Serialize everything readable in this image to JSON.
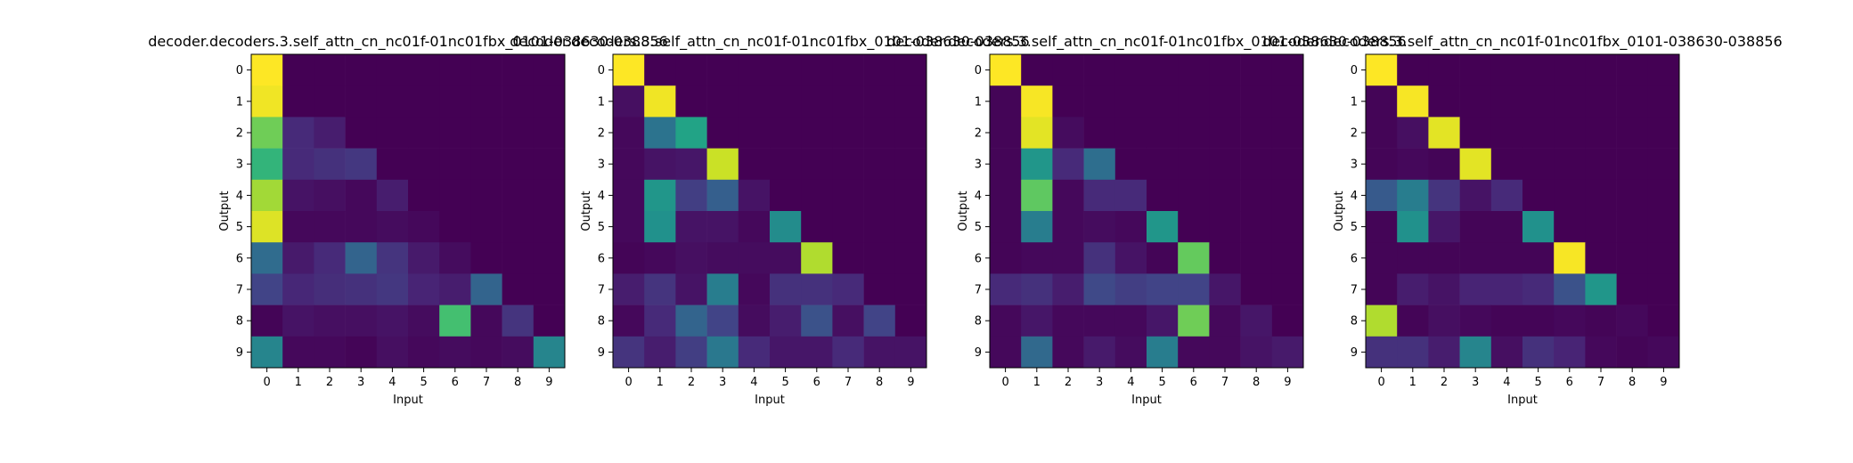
{
  "chart_data": [
    {
      "type": "heatmap",
      "title": "decoder.decoders.3.self_attn_cn_nc01f-01nc01fbx_0101-038630-038856",
      "xlabel": "Input",
      "ylabel": "Output",
      "x": [
        "0",
        "1",
        "2",
        "3",
        "4",
        "5",
        "6",
        "7",
        "8",
        "9"
      ],
      "y": [
        "0",
        "1",
        "2",
        "3",
        "4",
        "5",
        "6",
        "7",
        "8",
        "9"
      ],
      "colorscale": "viridis",
      "zlim": [
        0,
        1
      ],
      "values": [
        [
          1.0,
          0.0,
          0.0,
          0.0,
          0.0,
          0.0,
          0.0,
          0.0,
          0.0,
          0.0
        ],
        [
          0.98,
          0.0,
          0.0,
          0.0,
          0.0,
          0.0,
          0.0,
          0.0,
          0.0,
          0.0
        ],
        [
          0.78,
          0.12,
          0.08,
          0.0,
          0.0,
          0.0,
          0.0,
          0.0,
          0.0,
          0.0
        ],
        [
          0.65,
          0.12,
          0.14,
          0.16,
          0.0,
          0.0,
          0.0,
          0.0,
          0.0,
          0.0
        ],
        [
          0.86,
          0.05,
          0.04,
          0.02,
          0.08,
          0.0,
          0.0,
          0.0,
          0.0,
          0.0
        ],
        [
          0.95,
          0.02,
          0.02,
          0.02,
          0.03,
          0.02,
          0.0,
          0.0,
          0.0,
          0.0
        ],
        [
          0.35,
          0.07,
          0.12,
          0.32,
          0.15,
          0.07,
          0.03,
          0.0,
          0.0,
          0.0
        ],
        [
          0.2,
          0.11,
          0.13,
          0.14,
          0.16,
          0.1,
          0.08,
          0.32,
          0.0,
          0.0
        ],
        [
          0.01,
          0.05,
          0.04,
          0.04,
          0.05,
          0.03,
          0.7,
          0.02,
          0.15,
          0.0
        ],
        [
          0.45,
          0.02,
          0.02,
          0.01,
          0.04,
          0.02,
          0.03,
          0.02,
          0.03,
          0.45
        ]
      ]
    },
    {
      "type": "heatmap",
      "title": "decoder.decoders.3.self_attn_cn_nc01f-01nc01fbx_0101-038630-038856",
      "xlabel": "Input",
      "ylabel": "Output",
      "x": [
        "0",
        "1",
        "2",
        "3",
        "4",
        "5",
        "6",
        "7",
        "8",
        "9"
      ],
      "y": [
        "0",
        "1",
        "2",
        "3",
        "4",
        "5",
        "6",
        "7",
        "8",
        "9"
      ],
      "colorscale": "viridis",
      "zlim": [
        0,
        1
      ],
      "values": [
        [
          1.0,
          0.0,
          0.0,
          0.0,
          0.0,
          0.0,
          0.0,
          0.0,
          0.0,
          0.0
        ],
        [
          0.04,
          0.98,
          0.0,
          0.0,
          0.0,
          0.0,
          0.0,
          0.0,
          0.0,
          0.0
        ],
        [
          0.02,
          0.38,
          0.58,
          0.0,
          0.0,
          0.0,
          0.0,
          0.0,
          0.0,
          0.0
        ],
        [
          0.02,
          0.05,
          0.06,
          0.92,
          0.0,
          0.0,
          0.0,
          0.0,
          0.0,
          0.0
        ],
        [
          0.02,
          0.52,
          0.18,
          0.3,
          0.05,
          0.0,
          0.0,
          0.0,
          0.0,
          0.0
        ],
        [
          0.02,
          0.5,
          0.05,
          0.05,
          0.02,
          0.48,
          0.0,
          0.0,
          0.0,
          0.0
        ],
        [
          0.01,
          0.02,
          0.04,
          0.03,
          0.03,
          0.03,
          0.88,
          0.0,
          0.0,
          0.0
        ],
        [
          0.08,
          0.15,
          0.05,
          0.42,
          0.02,
          0.14,
          0.14,
          0.12,
          0.0,
          0.0
        ],
        [
          0.02,
          0.12,
          0.32,
          0.2,
          0.03,
          0.08,
          0.25,
          0.04,
          0.2,
          0.0
        ],
        [
          0.15,
          0.08,
          0.18,
          0.4,
          0.12,
          0.06,
          0.06,
          0.12,
          0.05,
          0.05
        ]
      ]
    },
    {
      "type": "heatmap",
      "title": "decoder.decoders.3.self_attn_cn_nc01f-01nc01fbx_0101-038630-038856",
      "xlabel": "Input",
      "ylabel": "Output",
      "x": [
        "0",
        "1",
        "2",
        "3",
        "4",
        "5",
        "6",
        "7",
        "8",
        "9"
      ],
      "y": [
        "0",
        "1",
        "2",
        "3",
        "4",
        "5",
        "6",
        "7",
        "8",
        "9"
      ],
      "colorscale": "viridis",
      "zlim": [
        0,
        1
      ],
      "values": [
        [
          1.0,
          0.0,
          0.0,
          0.0,
          0.0,
          0.0,
          0.0,
          0.0,
          0.0,
          0.0
        ],
        [
          0.01,
          0.99,
          0.0,
          0.0,
          0.0,
          0.0,
          0.0,
          0.0,
          0.0,
          0.0
        ],
        [
          0.01,
          0.96,
          0.03,
          0.0,
          0.0,
          0.0,
          0.0,
          0.0,
          0.0,
          0.0
        ],
        [
          0.01,
          0.52,
          0.12,
          0.36,
          0.0,
          0.0,
          0.0,
          0.0,
          0.0,
          0.0
        ],
        [
          0.01,
          0.75,
          0.02,
          0.12,
          0.12,
          0.0,
          0.0,
          0.0,
          0.0,
          0.0
        ],
        [
          0.01,
          0.42,
          0.02,
          0.03,
          0.02,
          0.52,
          0.0,
          0.0,
          0.0,
          0.0
        ],
        [
          0.01,
          0.02,
          0.02,
          0.14,
          0.05,
          0.01,
          0.76,
          0.0,
          0.0,
          0.0
        ],
        [
          0.12,
          0.14,
          0.08,
          0.22,
          0.18,
          0.2,
          0.2,
          0.06,
          0.0,
          0.0
        ],
        [
          0.02,
          0.06,
          0.02,
          0.02,
          0.02,
          0.06,
          0.78,
          0.02,
          0.06,
          0.0
        ],
        [
          0.02,
          0.34,
          0.02,
          0.07,
          0.03,
          0.42,
          0.02,
          0.02,
          0.05,
          0.07
        ]
      ]
    },
    {
      "type": "heatmap",
      "title": "decoder.decoders.3.self_attn_cn_nc01f-01nc01fbx_0101-038630-038856",
      "xlabel": "Input",
      "ylabel": "Output",
      "x": [
        "0",
        "1",
        "2",
        "3",
        "4",
        "5",
        "6",
        "7",
        "8",
        "9"
      ],
      "y": [
        "0",
        "1",
        "2",
        "3",
        "4",
        "5",
        "6",
        "7",
        "8",
        "9"
      ],
      "colorscale": "viridis",
      "zlim": [
        0,
        1
      ],
      "values": [
        [
          1.0,
          0.0,
          0.0,
          0.0,
          0.0,
          0.0,
          0.0,
          0.0,
          0.0,
          0.0
        ],
        [
          0.01,
          0.99,
          0.0,
          0.0,
          0.0,
          0.0,
          0.0,
          0.0,
          0.0,
          0.0
        ],
        [
          0.01,
          0.04,
          0.96,
          0.0,
          0.0,
          0.0,
          0.0,
          0.0,
          0.0,
          0.0
        ],
        [
          0.01,
          0.02,
          0.01,
          0.96,
          0.0,
          0.0,
          0.0,
          0.0,
          0.0,
          0.0
        ],
        [
          0.28,
          0.42,
          0.15,
          0.05,
          0.12,
          0.0,
          0.0,
          0.0,
          0.0,
          0.0
        ],
        [
          0.01,
          0.5,
          0.06,
          0.01,
          0.01,
          0.5,
          0.0,
          0.0,
          0.0,
          0.0
        ],
        [
          0.01,
          0.01,
          0.01,
          0.01,
          0.01,
          0.01,
          0.99,
          0.0,
          0.0,
          0.0
        ],
        [
          0.01,
          0.08,
          0.05,
          0.1,
          0.1,
          0.12,
          0.25,
          0.52,
          0.0,
          0.0
        ],
        [
          0.88,
          0.01,
          0.04,
          0.02,
          0.01,
          0.01,
          0.02,
          0.01,
          0.02,
          0.0
        ],
        [
          0.14,
          0.14,
          0.08,
          0.45,
          0.04,
          0.14,
          0.1,
          0.02,
          0.01,
          0.02
        ]
      ]
    }
  ]
}
